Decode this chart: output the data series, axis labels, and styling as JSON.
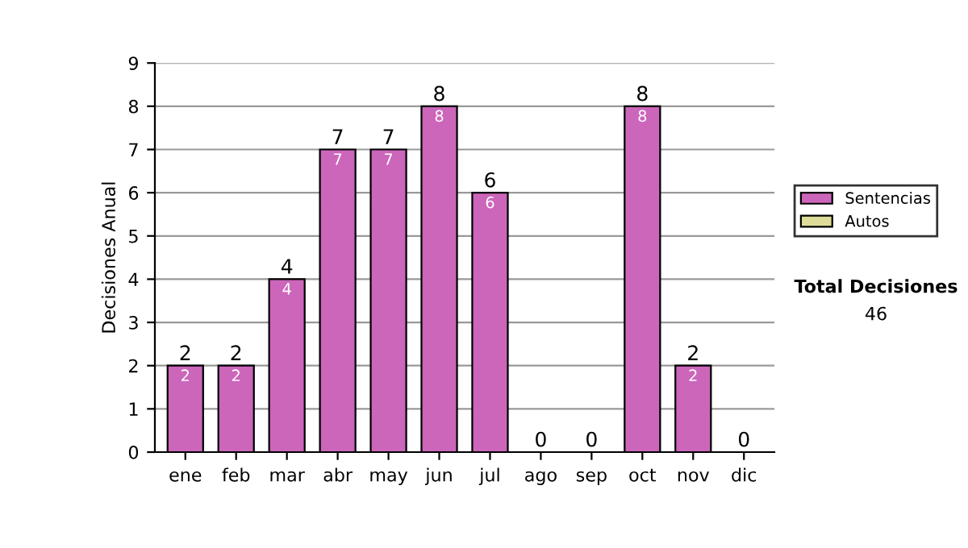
{
  "chart_data": {
    "type": "bar",
    "stacked": true,
    "ylabel": "Decisiones Anual",
    "categories": [
      "ene",
      "feb",
      "mar",
      "abr",
      "may",
      "jun",
      "jul",
      "ago",
      "sep",
      "oct",
      "nov",
      "dic"
    ],
    "series": [
      {
        "name": "Sentencias",
        "color": "#cc66bb",
        "values": [
          2,
          2,
          4,
          7,
          7,
          8,
          6,
          0,
          0,
          8,
          2,
          0
        ],
        "value_labels": [
          "2",
          "2",
          "4",
          "7",
          "7",
          "8",
          "6",
          null,
          null,
          "8",
          "2",
          null
        ]
      },
      {
        "name": "Autos",
        "color": "#dddd99",
        "values": [
          0,
          0,
          0,
          0,
          0,
          0,
          0,
          0,
          0,
          0,
          0,
          0
        ]
      }
    ],
    "totals": [
      "2",
      "2",
      "4",
      "7",
      "7",
      "8",
      "6",
      "0",
      "0",
      "8",
      "2",
      "0"
    ],
    "ylim": [
      0,
      9
    ],
    "yticks": [
      0,
      1,
      2,
      3,
      4,
      5,
      6,
      7,
      8,
      9
    ],
    "grid": "y",
    "legend": "right",
    "annotations": [
      "Total Decisiones",
      "46"
    ]
  }
}
